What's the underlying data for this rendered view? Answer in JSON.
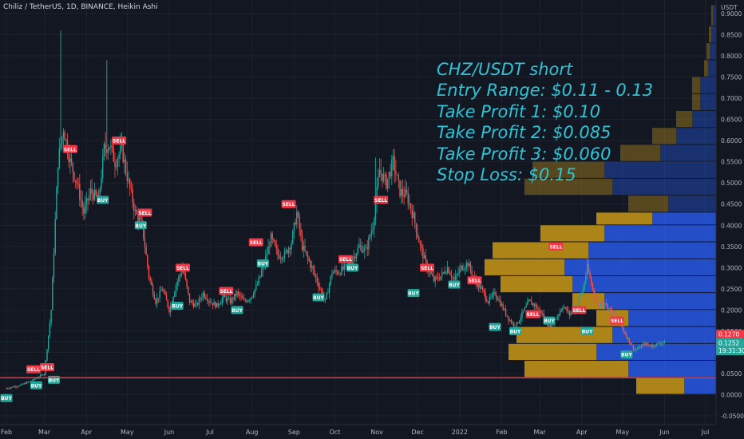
{
  "header": {
    "title": "Chiliz / TetherUS, 1D, BINANCE, Heikin Ashi"
  },
  "price_axis": {
    "currency": "USDT",
    "price_label": "0.1270",
    "current_price": "0.1252",
    "countdown": "19:31:30"
  },
  "trade_plan": {
    "title": "CHZ/USDT short",
    "entry": "Entry Range: $0.11 - 0.13",
    "tp1": "Take Profit 1: $0.10",
    "tp2": "Take Profit 2: $0.085",
    "tp3": "Take Profit 3: $0.060",
    "stop": "Stop Loss: $0.15"
  },
  "colors": {
    "background": "#131722",
    "up_candle": "#26a69a",
    "down_candle": "#ef5350",
    "trade_text": "#2fc3d6",
    "support_line": "#f23645",
    "vp_up": "#2962ff",
    "vp_down": "#d4a017"
  },
  "chart_data": {
    "type": "candlestick",
    "title": "Chiliz / TetherUS, 1D, BINANCE, Heikin Ashi",
    "ylim": [
      -0.06,
      0.92
    ],
    "yticks": [
      "0.9000",
      "0.8500",
      "0.8000",
      "0.7500",
      "0.7000",
      "0.6500",
      "0.6000",
      "0.5500",
      "0.5000",
      "0.4500",
      "0.4000",
      "0.3500",
      "0.3000",
      "0.2500",
      "0.2000",
      "0.1500",
      "0.1000",
      "0.0500",
      "0.0000",
      "-0.0500"
    ],
    "ytick_values": [
      0.9,
      0.85,
      0.8,
      0.75,
      0.7,
      0.65,
      0.6,
      0.55,
      0.5,
      0.45,
      0.4,
      0.35,
      0.3,
      0.25,
      0.2,
      0.15,
      0.1,
      0.05,
      0.0,
      -0.05
    ],
    "xticks": [
      "Feb",
      "Mar",
      "Apr",
      "May",
      "Jun",
      "Jul",
      "Aug",
      "Sep",
      "Oct",
      "Nov",
      "Dec",
      "2022",
      "Feb",
      "Mar",
      "Apr",
      "May",
      "Jun",
      "Jul"
    ],
    "xtick_days": [
      0,
      28,
      59,
      89,
      120,
      150,
      181,
      212,
      242,
      273,
      303,
      334,
      365,
      393,
      424,
      454,
      485,
      515
    ],
    "support_line": 0.04,
    "price_line": 0.1252,
    "key_points": [
      [
        0,
        0.015
      ],
      [
        10,
        0.022
      ],
      [
        20,
        0.035
      ],
      [
        28,
        0.05
      ],
      [
        33,
        0.2
      ],
      [
        38,
        0.55
      ],
      [
        42,
        0.63
      ],
      [
        47,
        0.55
      ],
      [
        52,
        0.5
      ],
      [
        57,
        0.43
      ],
      [
        62,
        0.48
      ],
      [
        68,
        0.46
      ],
      [
        72,
        0.58
      ],
      [
        76,
        0.59
      ],
      [
        80,
        0.55
      ],
      [
        85,
        0.58
      ],
      [
        90,
        0.5
      ],
      [
        95,
        0.43
      ],
      [
        100,
        0.4
      ],
      [
        105,
        0.28
      ],
      [
        110,
        0.22
      ],
      [
        115,
        0.25
      ],
      [
        120,
        0.2
      ],
      [
        125,
        0.26
      ],
      [
        130,
        0.3
      ],
      [
        135,
        0.22
      ],
      [
        140,
        0.21
      ],
      [
        145,
        0.24
      ],
      [
        150,
        0.22
      ],
      [
        155,
        0.21
      ],
      [
        160,
        0.23
      ],
      [
        165,
        0.22
      ],
      [
        170,
        0.24
      ],
      [
        175,
        0.22
      ],
      [
        180,
        0.23
      ],
      [
        185,
        0.26
      ],
      [
        190,
        0.31
      ],
      [
        195,
        0.37
      ],
      [
        200,
        0.33
      ],
      [
        205,
        0.33
      ],
      [
        210,
        0.36
      ],
      [
        214,
        0.43
      ],
      [
        218,
        0.35
      ],
      [
        225,
        0.3
      ],
      [
        230,
        0.26
      ],
      [
        235,
        0.22
      ],
      [
        240,
        0.29
      ],
      [
        245,
        0.29
      ],
      [
        250,
        0.3
      ],
      [
        255,
        0.32
      ],
      [
        260,
        0.35
      ],
      [
        265,
        0.34
      ],
      [
        270,
        0.4
      ],
      [
        275,
        0.53
      ],
      [
        280,
        0.5
      ],
      [
        285,
        0.55
      ],
      [
        290,
        0.48
      ],
      [
        295,
        0.47
      ],
      [
        300,
        0.42
      ],
      [
        305,
        0.35
      ],
      [
        310,
        0.3
      ],
      [
        315,
        0.27
      ],
      [
        320,
        0.28
      ],
      [
        325,
        0.3
      ],
      [
        330,
        0.27
      ],
      [
        335,
        0.3
      ],
      [
        340,
        0.31
      ],
      [
        345,
        0.27
      ],
      [
        350,
        0.25
      ],
      [
        355,
        0.22
      ],
      [
        360,
        0.24
      ],
      [
        365,
        0.21
      ],
      [
        370,
        0.18
      ],
      [
        375,
        0.16
      ],
      [
        380,
        0.19
      ],
      [
        385,
        0.22
      ],
      [
        390,
        0.21
      ],
      [
        395,
        0.19
      ],
      [
        400,
        0.16
      ],
      [
        405,
        0.18
      ],
      [
        410,
        0.21
      ],
      [
        415,
        0.19
      ],
      [
        420,
        0.21
      ],
      [
        425,
        0.25
      ],
      [
        428,
        0.3
      ],
      [
        432,
        0.25
      ],
      [
        436,
        0.21
      ],
      [
        440,
        0.22
      ],
      [
        445,
        0.2
      ],
      [
        450,
        0.18
      ],
      [
        455,
        0.15
      ],
      [
        460,
        0.12
      ],
      [
        463,
        0.105
      ],
      [
        466,
        0.11
      ],
      [
        470,
        0.12
      ],
      [
        475,
        0.115
      ],
      [
        480,
        0.12
      ],
      [
        485,
        0.125
      ]
    ],
    "signals": [
      {
        "label": "BUY",
        "day": 0,
        "y": -0.008,
        "type": "buy"
      },
      {
        "label": "BUY",
        "day": 22,
        "y": 0.022,
        "type": "buy"
      },
      {
        "label": "SELL",
        "day": 20,
        "y": 0.06,
        "type": "sell"
      },
      {
        "label": "SELL",
        "day": 30,
        "y": 0.065,
        "type": "sell"
      },
      {
        "label": "BUY",
        "day": 35,
        "y": 0.035,
        "type": "buy"
      },
      {
        "label": "SELL",
        "day": 47,
        "y": 0.58,
        "type": "sell"
      },
      {
        "label": "BUY",
        "day": 71,
        "y": 0.46,
        "type": "buy"
      },
      {
        "label": "SELL",
        "day": 83,
        "y": 0.6,
        "type": "sell"
      },
      {
        "label": "SELL",
        "day": 102,
        "y": 0.43,
        "type": "sell"
      },
      {
        "label": "BUY",
        "day": 99,
        "y": 0.4,
        "type": "buy"
      },
      {
        "label": "SELL",
        "day": 130,
        "y": 0.3,
        "type": "sell"
      },
      {
        "label": "BUY",
        "day": 126,
        "y": 0.21,
        "type": "buy"
      },
      {
        "label": "SELL",
        "day": 162,
        "y": 0.245,
        "type": "sell"
      },
      {
        "label": "BUY",
        "day": 170,
        "y": 0.2,
        "type": "buy"
      },
      {
        "label": "SELL",
        "day": 184,
        "y": 0.36,
        "type": "sell"
      },
      {
        "label": "BUY",
        "day": 189,
        "y": 0.31,
        "type": "buy"
      },
      {
        "label": "SELL",
        "day": 208,
        "y": 0.45,
        "type": "sell"
      },
      {
        "label": "BUY",
        "day": 230,
        "y": 0.23,
        "type": "buy"
      },
      {
        "label": "SELL",
        "day": 250,
        "y": 0.32,
        "type": "sell"
      },
      {
        "label": "BUY",
        "day": 255,
        "y": 0.3,
        "type": "buy"
      },
      {
        "label": "SELL",
        "day": 276,
        "y": 0.46,
        "type": "sell"
      },
      {
        "label": "BUY",
        "day": 300,
        "y": 0.24,
        "type": "buy"
      },
      {
        "label": "SELL",
        "day": 310,
        "y": 0.3,
        "type": "sell"
      },
      {
        "label": "BUY",
        "day": 330,
        "y": 0.26,
        "type": "buy"
      },
      {
        "label": "SELL",
        "day": 345,
        "y": 0.27,
        "type": "sell"
      },
      {
        "label": "BUY",
        "day": 360,
        "y": 0.16,
        "type": "buy"
      },
      {
        "label": "SELL",
        "day": 388,
        "y": 0.19,
        "type": "sell"
      },
      {
        "label": "BUY",
        "day": 375,
        "y": 0.15,
        "type": "buy"
      },
      {
        "label": "SELL",
        "day": 405,
        "y": 0.35,
        "type": "sell"
      },
      {
        "label": "BUY",
        "day": 400,
        "y": 0.175,
        "type": "buy"
      },
      {
        "label": "SELL",
        "day": 422,
        "y": 0.2,
        "type": "sell"
      },
      {
        "label": "BUY",
        "day": 428,
        "y": 0.15,
        "type": "buy"
      },
      {
        "label": "SELL",
        "day": 450,
        "y": 0.175,
        "type": "sell"
      },
      {
        "label": "BUY",
        "day": 457,
        "y": 0.095,
        "type": "buy"
      }
    ],
    "volume_profile": [
      {
        "y0": 0.43,
        "y1": 0.47,
        "up": 0.06,
        "down": 0.05
      },
      {
        "y0": 0.47,
        "y1": 0.51,
        "up": 0.13,
        "down": 0.11
      },
      {
        "y0": 0.51,
        "y1": 0.55,
        "up": 0.14,
        "down": 0.09
      },
      {
        "y0": 0.55,
        "y1": 0.59,
        "up": 0.07,
        "down": 0.05
      },
      {
        "y0": 0.59,
        "y1": 0.63,
        "up": 0.05,
        "down": 0.03
      },
      {
        "y0": 0.63,
        "y1": 0.67,
        "up": 0.03,
        "down": 0.02
      },
      {
        "y0": 0.67,
        "y1": 0.71,
        "up": 0.02,
        "down": 0.01
      },
      {
        "y0": 0.71,
        "y1": 0.75,
        "up": 0.02,
        "down": 0.01
      },
      {
        "y0": 0.75,
        "y1": 0.79,
        "up": 0.01,
        "down": 0.005
      },
      {
        "y0": 0.79,
        "y1": 0.83,
        "up": 0.008,
        "down": 0.004
      },
      {
        "y0": 0.83,
        "y1": 0.87,
        "up": 0.006,
        "down": 0.003
      },
      {
        "y0": 0.87,
        "y1": 0.92,
        "up": 0.004,
        "down": 0.002
      },
      {
        "y0": 0.0,
        "y1": 0.04,
        "up": 0.04,
        "down": 0.06
      },
      {
        "y0": 0.04,
        "y1": 0.08,
        "up": 0.11,
        "down": 0.13
      },
      {
        "y0": 0.08,
        "y1": 0.12,
        "up": 0.15,
        "down": 0.11
      },
      {
        "y0": 0.12,
        "y1": 0.16,
        "up": 0.13,
        "down": 0.12
      },
      {
        "y0": 0.16,
        "y1": 0.2,
        "up": 0.11,
        "down": 0.04
      },
      {
        "y0": 0.2,
        "y1": 0.24,
        "up": 0.14,
        "down": 0.04
      },
      {
        "y0": 0.24,
        "y1": 0.28,
        "up": 0.18,
        "down": 0.09
      },
      {
        "y0": 0.28,
        "y1": 0.32,
        "up": 0.19,
        "down": 0.1
      },
      {
        "y0": 0.32,
        "y1": 0.36,
        "up": 0.16,
        "down": 0.12
      },
      {
        "y0": 0.36,
        "y1": 0.4,
        "up": 0.14,
        "down": 0.08
      },
      {
        "y0": 0.4,
        "y1": 0.43,
        "up": 0.08,
        "down": 0.07
      }
    ]
  }
}
